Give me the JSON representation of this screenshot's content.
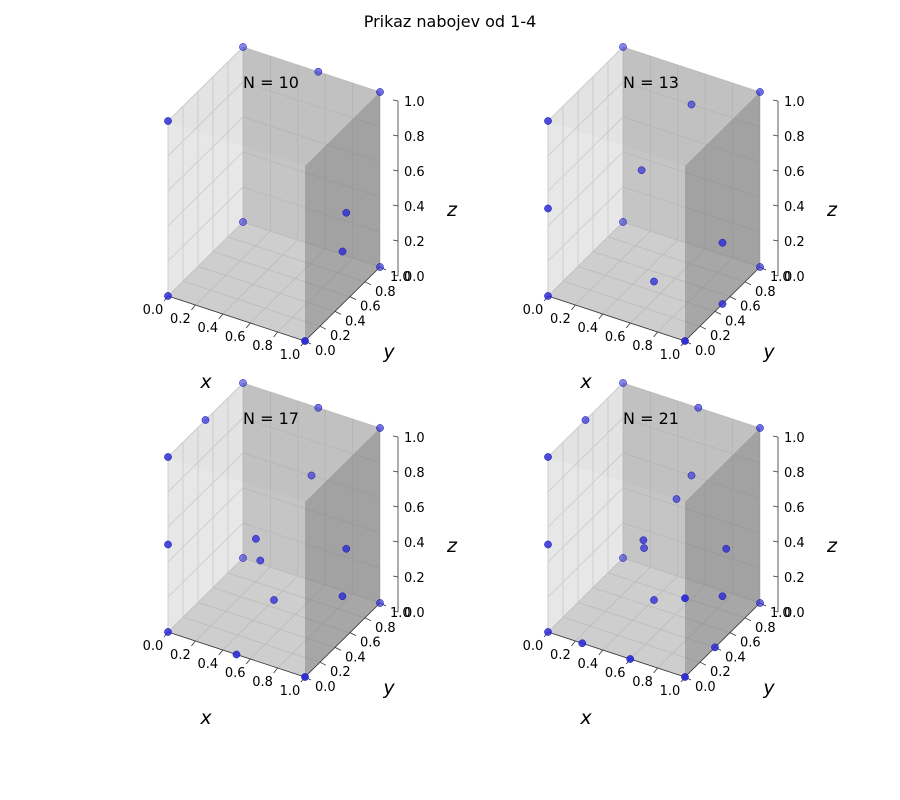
{
  "figure": {
    "title": "Prikaz nabojev od 1-4"
  },
  "colors": {
    "point": "#2b2bd6",
    "pane_dark": "#9a9a9a",
    "pane_light": "#f0f0f0",
    "axis": "#444444"
  },
  "chart_data": [
    {
      "type": "scatter3d",
      "title": "N = 10",
      "xlabel": "x",
      "ylabel": "y",
      "zlabel": "z",
      "xlim": [
        0,
        1
      ],
      "ylim": [
        0,
        1
      ],
      "zlim": [
        0,
        1
      ],
      "x_ticks": [
        "0.0",
        "0.2",
        "0.4",
        "0.6",
        "0.8",
        "1.0"
      ],
      "y_ticks": [
        "0.0",
        "0.2",
        "0.4",
        "0.6",
        "0.8",
        "1.0"
      ],
      "z_ticks": [
        "0.0",
        "0.2",
        "0.4",
        "0.6",
        "0.8",
        "1.0"
      ],
      "grid": true,
      "points": [
        [
          0,
          0,
          0
        ],
        [
          1,
          0,
          0
        ],
        [
          0,
          1,
          0
        ],
        [
          1,
          1,
          0
        ],
        [
          0,
          0,
          1
        ],
        [
          1,
          1,
          1
        ],
        [
          0,
          1,
          1
        ],
        [
          0.55,
          1,
          1
        ],
        [
          1,
          0.55,
          0.5
        ],
        [
          1,
          0.5,
          0.3
        ]
      ]
    },
    {
      "type": "scatter3d",
      "title": "N = 13",
      "xlabel": "x",
      "ylabel": "y",
      "zlabel": "z",
      "xlim": [
        0,
        1
      ],
      "ylim": [
        0,
        1
      ],
      "zlim": [
        0,
        1
      ],
      "x_ticks": [
        "0.0",
        "0.2",
        "0.4",
        "0.6",
        "0.8",
        "1.0"
      ],
      "y_ticks": [
        "0.0",
        "0.2",
        "0.4",
        "0.6",
        "0.8",
        "1.0"
      ],
      "z_ticks": [
        "0.0",
        "0.2",
        "0.4",
        "0.6",
        "0.8",
        "1.0"
      ],
      "grid": true,
      "points": [
        [
          0,
          0,
          0
        ],
        [
          1,
          0,
          0
        ],
        [
          0,
          1,
          0
        ],
        [
          1,
          1,
          0
        ],
        [
          0,
          0,
          1
        ],
        [
          1,
          1,
          1
        ],
        [
          0,
          1,
          1
        ],
        [
          0,
          0,
          0.5
        ],
        [
          1,
          0.5,
          0.35
        ],
        [
          1,
          0.5,
          0
        ],
        [
          0.5,
          1,
          0.8
        ],
        [
          0.5,
          0.5,
          0
        ],
        [
          0.3,
          0.7,
          0.5
        ]
      ]
    },
    {
      "type": "scatter3d",
      "title": "N = 17",
      "xlabel": "x",
      "ylabel": "y",
      "zlabel": "z",
      "xlim": [
        0,
        1
      ],
      "ylim": [
        0,
        1
      ],
      "zlim": [
        0,
        1
      ],
      "x_ticks": [
        "0.0",
        "0.2",
        "0.4",
        "0.6",
        "0.8",
        "1.0"
      ],
      "y_ticks": [
        "0.0",
        "0.2",
        "0.4",
        "0.6",
        "0.8",
        "1.0"
      ],
      "z_ticks": [
        "0.0",
        "0.2",
        "0.4",
        "0.6",
        "0.8",
        "1.0"
      ],
      "grid": true,
      "points": [
        [
          0,
          0,
          0
        ],
        [
          1,
          0,
          0
        ],
        [
          0,
          1,
          0
        ],
        [
          1,
          1,
          0
        ],
        [
          0,
          0,
          1
        ],
        [
          1,
          1,
          1
        ],
        [
          0,
          1,
          1
        ],
        [
          0.55,
          1,
          1
        ],
        [
          0,
          0.5,
          1
        ],
        [
          0,
          0,
          0.5
        ],
        [
          0.5,
          0,
          0
        ],
        [
          0.5,
          1,
          0.6
        ],
        [
          1,
          0.55,
          0.5
        ],
        [
          1,
          0.5,
          0.25
        ],
        [
          0.45,
          0.35,
          0.5
        ],
        [
          0.4,
          0.5,
          0.3
        ],
        [
          0.5,
          0.5,
          0.1
        ]
      ]
    },
    {
      "type": "scatter3d",
      "title": "N = 21",
      "xlabel": "x",
      "ylabel": "y",
      "zlabel": "z",
      "xlim": [
        0,
        1
      ],
      "ylim": [
        0,
        1
      ],
      "zlim": [
        0,
        1
      ],
      "x_ticks": [
        "0.0",
        "0.2",
        "0.4",
        "0.6",
        "0.8",
        "1.0"
      ],
      "y_ticks": [
        "0.0",
        "0.2",
        "0.4",
        "0.6",
        "0.8",
        "1.0"
      ],
      "z_ticks": [
        "0.0",
        "0.2",
        "0.4",
        "0.6",
        "0.8",
        "1.0"
      ],
      "grid": true,
      "points": [
        [
          0,
          0,
          0
        ],
        [
          1,
          0,
          0
        ],
        [
          0,
          1,
          0
        ],
        [
          1,
          1,
          0
        ],
        [
          0,
          0,
          1
        ],
        [
          1,
          1,
          1
        ],
        [
          0,
          1,
          1
        ],
        [
          0.55,
          1,
          1
        ],
        [
          0,
          0.5,
          1
        ],
        [
          0,
          0,
          0.5
        ],
        [
          0.25,
          0,
          0
        ],
        [
          0.6,
          0,
          0
        ],
        [
          1,
          0.4,
          0
        ],
        [
          1,
          0,
          0.45
        ],
        [
          1,
          0.55,
          0.5
        ],
        [
          1,
          0.5,
          0.25
        ],
        [
          0.5,
          1,
          0.6
        ],
        [
          0.45,
          0.45,
          0.45
        ],
        [
          0.5,
          0.5,
          0.1
        ],
        [
          0.4,
          0.55,
          0.35
        ],
        [
          0.5,
          0.8,
          0.55
        ]
      ]
    }
  ]
}
